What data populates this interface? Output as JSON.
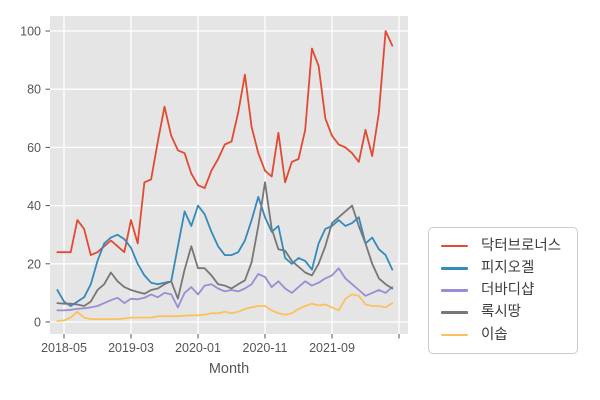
{
  "figure": {
    "background": "#ffffff",
    "plot_background": "#e5e5e5",
    "grid_color": "#ffffff",
    "tick_color": "#555555",
    "legend_border_color": "#cccccc"
  },
  "chart_data": {
    "type": "line",
    "title": "",
    "xlabel": "Month",
    "ylabel": "",
    "x_unit": "month",
    "x_range": [
      "2018-04",
      "2022-06"
    ],
    "n_points": 51,
    "x_ticks": [
      {
        "index": 1,
        "label": "2018-05"
      },
      {
        "index": 11,
        "label": "2019-03"
      },
      {
        "index": 21,
        "label": "2020-01"
      },
      {
        "index": 31,
        "label": "2020-11"
      },
      {
        "index": 41,
        "label": "2021-09"
      },
      {
        "index": 51,
        "label": ""
      }
    ],
    "y_ticks": [
      0,
      20,
      40,
      60,
      80,
      100
    ],
    "ylim": [
      -4,
      105
    ],
    "grid": true,
    "legend_position": "right-outside-middle",
    "series": [
      {
        "name": "닥터브로너스",
        "color": "#E24A33",
        "values": [
          24,
          24,
          24,
          35,
          32,
          23,
          24,
          26,
          28,
          26,
          24,
          35,
          27,
          48,
          49,
          62,
          74,
          64,
          59,
          58,
          51,
          47,
          46,
          52,
          56,
          61,
          62,
          72,
          85,
          67,
          58,
          52,
          50,
          65,
          48,
          55,
          56,
          66,
          94,
          88,
          70,
          64,
          61,
          60,
          58,
          55,
          66,
          57,
          72,
          100,
          95
        ]
      },
      {
        "name": "피지오겔",
        "color": "#348ABD",
        "values": [
          11,
          7,
          5.5,
          7,
          8.5,
          13,
          21,
          27,
          29,
          30,
          28.5,
          25.5,
          20,
          16,
          13.5,
          13,
          13.5,
          14,
          26,
          38,
          33,
          40,
          37,
          31,
          26,
          23,
          23,
          24,
          28,
          35,
          43,
          36,
          31,
          33,
          22,
          20,
          22,
          21,
          18,
          27,
          32,
          33,
          35,
          33,
          34,
          36,
          27,
          29,
          25,
          23,
          18
        ]
      },
      {
        "name": "더바디샵",
        "color": "#988ED5",
        "values": [
          4,
          4,
          4.2,
          4.5,
          4.7,
          5,
          5.5,
          6.5,
          7.5,
          8.3,
          6.5,
          8,
          7.8,
          8.3,
          9.5,
          8.5,
          10,
          9.5,
          5,
          10,
          12,
          9.5,
          12.5,
          13,
          11.5,
          10.5,
          11,
          10.5,
          11.5,
          13,
          16.5,
          15.5,
          12,
          14,
          11.5,
          10,
          12,
          14,
          12.5,
          13.5,
          15,
          16,
          18.5,
          15,
          13,
          11,
          9,
          10,
          11,
          10,
          12
        ]
      },
      {
        "name": "록시땅",
        "color": "#777777",
        "values": [
          6.5,
          6.3,
          6.3,
          6,
          5.5,
          7,
          11,
          13,
          17,
          14,
          12,
          11,
          10.3,
          9.7,
          11,
          11.5,
          13,
          14,
          8,
          18,
          26,
          18.5,
          18.5,
          16,
          13,
          12.5,
          11.5,
          13,
          14.3,
          20.5,
          33,
          48,
          32,
          25,
          24.5,
          21,
          19,
          17,
          16,
          20,
          26,
          34,
          36,
          38,
          40,
          33,
          27,
          20,
          15,
          13,
          11.5
        ]
      },
      {
        "name": "이솝",
        "color": "#FBC15E",
        "values": [
          0.3,
          0.5,
          1.5,
          3.5,
          1.5,
          1,
          1,
          1,
          1,
          1,
          1.2,
          1.5,
          1.5,
          1.5,
          1.5,
          2,
          2,
          2,
          2,
          2.2,
          2.3,
          2.3,
          2.5,
          3,
          3,
          3.5,
          3,
          3.5,
          4.5,
          5,
          5.5,
          5.5,
          4,
          3,
          2.5,
          3,
          4.5,
          5.5,
          6.3,
          5.7,
          6,
          5,
          4,
          8,
          9.5,
          9,
          6,
          5.5,
          5.5,
          5,
          6.5
        ]
      }
    ]
  }
}
